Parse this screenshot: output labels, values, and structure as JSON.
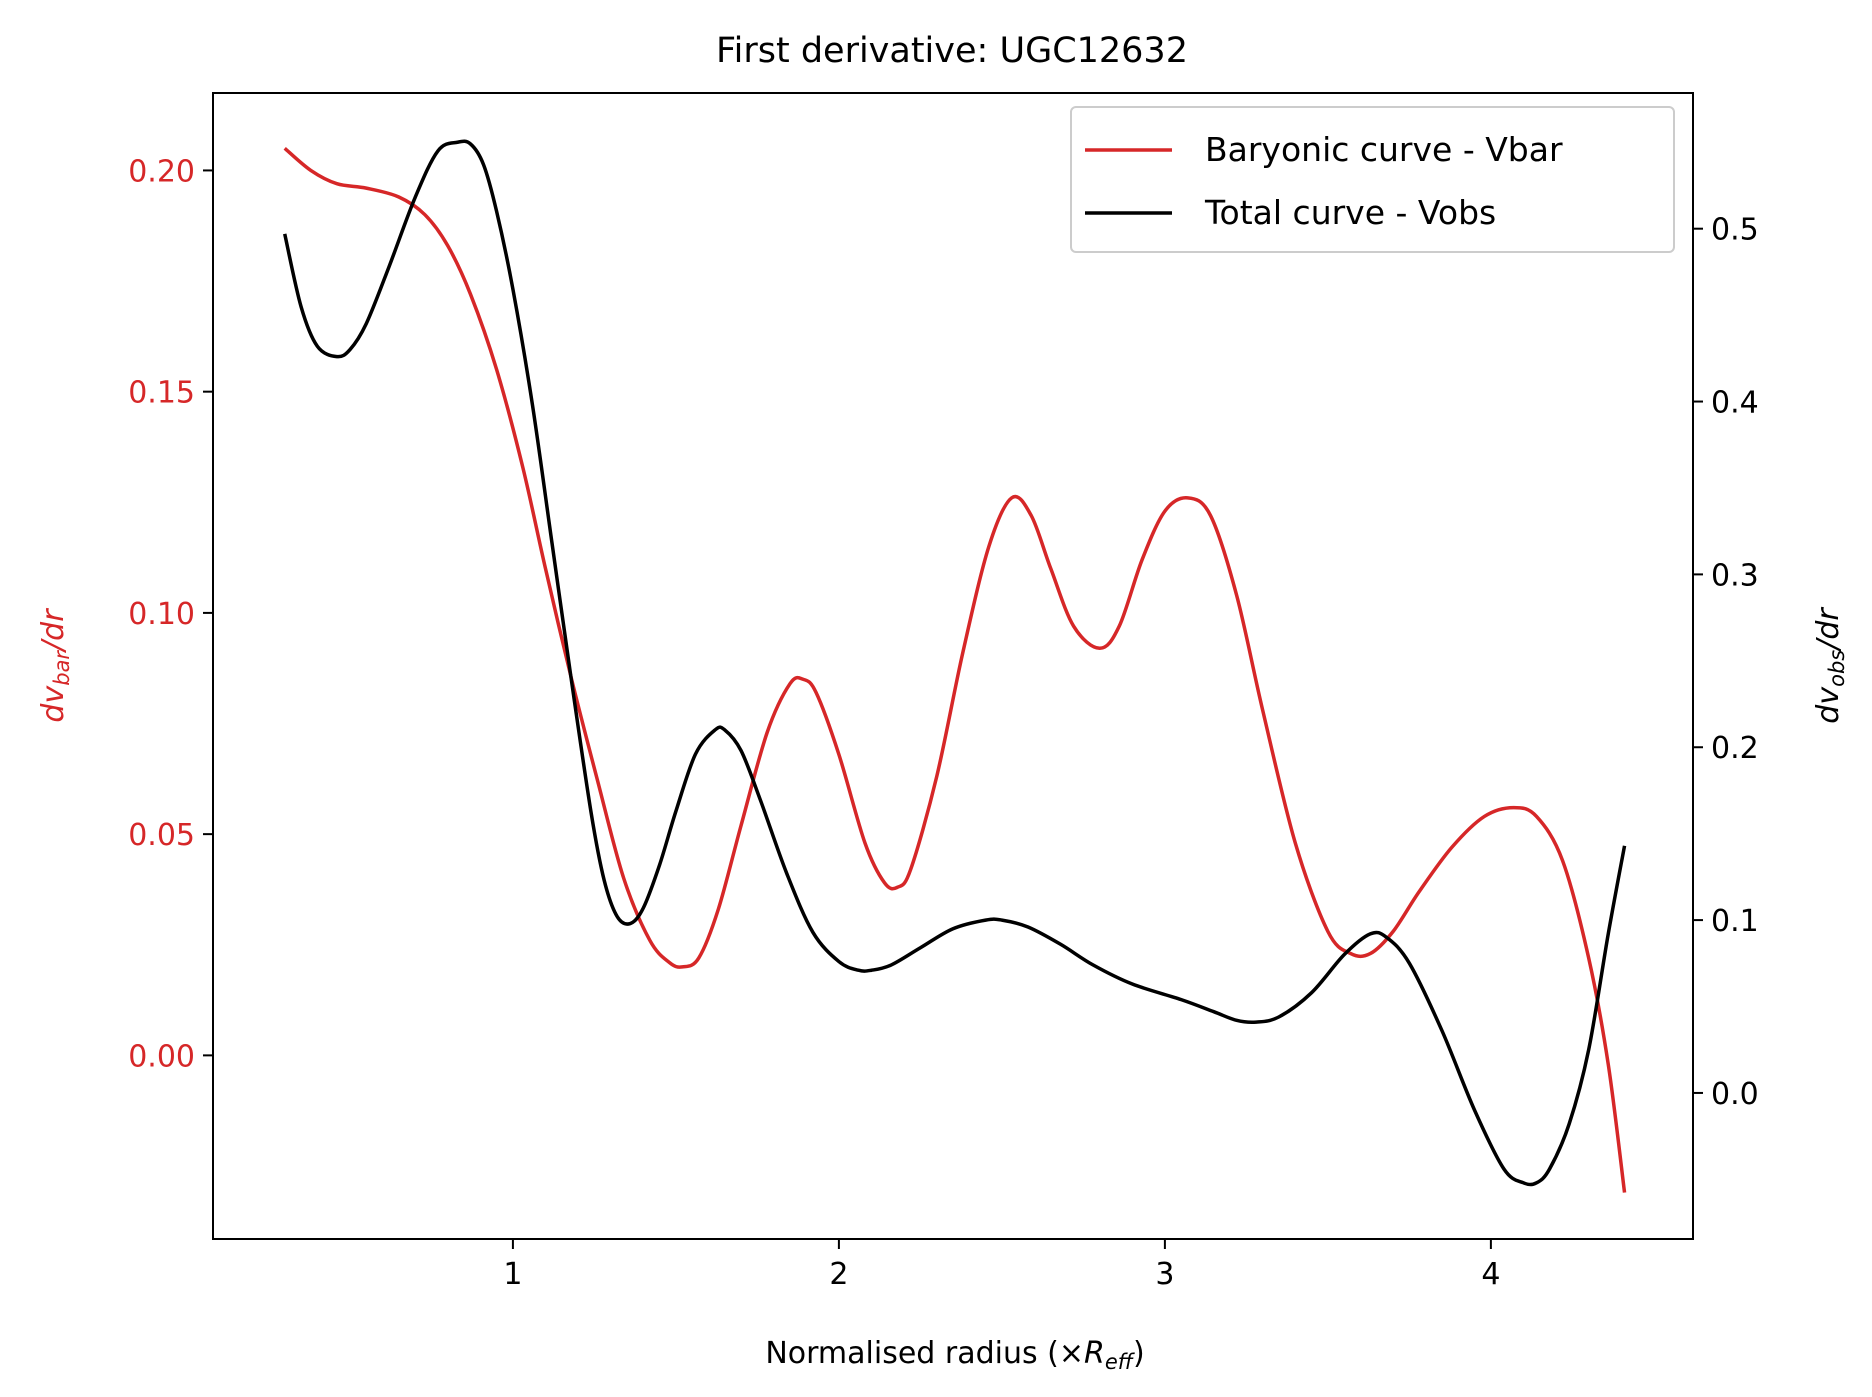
{
  "chart_data": {
    "type": "line",
    "title": "First derivative: UGC12632",
    "xlabel": {
      "prefix": "Normalised radius (×",
      "symbol": "R",
      "sub": "eff",
      "suffix": ")"
    },
    "ylabel_left": {
      "prefix": "dv",
      "sub": "bar",
      "suffix": "/dr"
    },
    "ylabel_right": {
      "prefix": "dv",
      "sub": "obs",
      "suffix": "/dr"
    },
    "xlim": [
      0.08,
      4.62
    ],
    "ylim_left": [
      -0.0415,
      0.2175
    ],
    "ylim_right": [
      -0.0845,
      0.5785
    ],
    "x_ticks": [
      1,
      2,
      3,
      4
    ],
    "y_ticks_left": [
      0.0,
      0.05,
      0.1,
      0.15,
      0.2
    ],
    "y_ticks_right": [
      0.0,
      0.1,
      0.2,
      0.3,
      0.4,
      0.5
    ],
    "x_tick_labels": [
      "1",
      "2",
      "3",
      "4"
    ],
    "y_tick_labels_left": [
      "0.00",
      "0.05",
      "0.10",
      "0.15",
      "0.20"
    ],
    "y_tick_labels_right": [
      "0.0",
      "0.1",
      "0.2",
      "0.3",
      "0.4",
      "0.5"
    ],
    "legend_position": "top-right",
    "colors": {
      "vbar": "#d62728",
      "vobs": "#000000",
      "axes": "#000000"
    },
    "series": [
      {
        "name": "Baryonic curve - Vbar",
        "axis": "left",
        "color": "#d62728",
        "x": [
          0.3,
          0.38,
          0.46,
          0.55,
          0.65,
          0.73,
          0.8,
          0.87,
          0.95,
          1.03,
          1.1,
          1.18,
          1.26,
          1.34,
          1.42,
          1.48,
          1.52,
          1.57,
          1.63,
          1.7,
          1.78,
          1.85,
          1.89,
          1.93,
          2.0,
          2.08,
          2.14,
          2.18,
          2.22,
          2.3,
          2.38,
          2.46,
          2.53,
          2.59,
          2.65,
          2.72,
          2.8,
          2.86,
          2.93,
          3.0,
          3.07,
          3.14,
          3.22,
          3.3,
          3.4,
          3.5,
          3.57,
          3.63,
          3.7,
          3.78,
          3.88,
          3.98,
          4.07,
          4.14,
          4.22,
          4.3,
          4.36,
          4.41
        ],
        "values": [
          0.205,
          0.2,
          0.197,
          0.196,
          0.194,
          0.19,
          0.183,
          0.172,
          0.155,
          0.133,
          0.11,
          0.085,
          0.062,
          0.04,
          0.026,
          0.021,
          0.02,
          0.022,
          0.033,
          0.052,
          0.073,
          0.084,
          0.085,
          0.082,
          0.068,
          0.048,
          0.039,
          0.038,
          0.042,
          0.063,
          0.091,
          0.115,
          0.126,
          0.122,
          0.11,
          0.097,
          0.092,
          0.097,
          0.112,
          0.123,
          0.126,
          0.122,
          0.104,
          0.078,
          0.048,
          0.028,
          0.023,
          0.023,
          0.028,
          0.037,
          0.047,
          0.054,
          0.056,
          0.054,
          0.044,
          0.022,
          -0.002,
          -0.031
        ]
      },
      {
        "name": "Total curve - Vobs",
        "axis": "right",
        "color": "#000000",
        "x": [
          0.3,
          0.35,
          0.4,
          0.46,
          0.5,
          0.55,
          0.62,
          0.7,
          0.77,
          0.83,
          0.87,
          0.91,
          0.95,
          1.0,
          1.06,
          1.12,
          1.18,
          1.24,
          1.28,
          1.32,
          1.36,
          1.4,
          1.45,
          1.5,
          1.56,
          1.62,
          1.65,
          1.7,
          1.76,
          1.84,
          1.92,
          2.0,
          2.06,
          2.1,
          2.16,
          2.25,
          2.35,
          2.45,
          2.5,
          2.58,
          2.68,
          2.78,
          2.9,
          3.05,
          3.15,
          3.22,
          3.28,
          3.35,
          3.45,
          3.55,
          3.63,
          3.68,
          3.75,
          3.85,
          3.95,
          4.04,
          4.1,
          4.14,
          4.18,
          4.24,
          4.3,
          4.36,
          4.41
        ],
        "values": [
          0.497,
          0.455,
          0.432,
          0.426,
          0.43,
          0.445,
          0.478,
          0.518,
          0.545,
          0.55,
          0.549,
          0.537,
          0.51,
          0.465,
          0.398,
          0.318,
          0.238,
          0.162,
          0.123,
          0.102,
          0.098,
          0.107,
          0.132,
          0.163,
          0.196,
          0.21,
          0.21,
          0.198,
          0.169,
          0.127,
          0.093,
          0.076,
          0.071,
          0.071,
          0.074,
          0.084,
          0.095,
          0.1,
          0.1,
          0.096,
          0.086,
          0.074,
          0.063,
          0.054,
          0.047,
          0.042,
          0.041,
          0.044,
          0.058,
          0.08,
          0.092,
          0.09,
          0.075,
          0.036,
          -0.01,
          -0.044,
          -0.052,
          -0.052,
          -0.044,
          -0.018,
          0.025,
          0.092,
          0.143
        ]
      }
    ]
  }
}
